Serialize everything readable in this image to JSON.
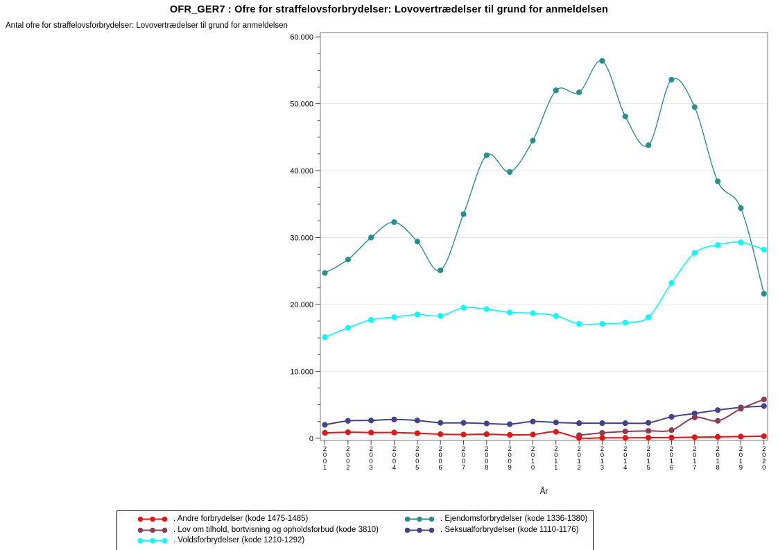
{
  "title": "OFR_GER7 : Ofre for straffelovsforbrydelser: Lovovertrædelser til grund for anmeldelsen",
  "y_axis_label": "Antal ofre for straffelovsforbrydelser: Lovovertrædelser til grund for anmeldelsen",
  "x_axis_title": "År",
  "colors": {
    "grid": "#e8e8e8",
    "frame": "#8c8c8c",
    "tick": "#404040",
    "legend_border": "#000000"
  },
  "chart_data": {
    "type": "line",
    "interpolation": "spline",
    "title": "OFR_GER7 : Ofre for straffelovsforbrydelser: Lovovertrædelser til grund for anmeldelsen",
    "xlabel": "År",
    "ylabel": "Antal ofre for straffelovsforbrydelser: Lovovertrædelser til grund for anmeldelsen",
    "x": [
      "2001",
      "2002",
      "2003",
      "2004",
      "2005",
      "2006",
      "2007",
      "2008",
      "2009",
      "2010",
      "2011",
      "2012",
      "2013",
      "2014",
      "2015",
      "2016",
      "2017",
      "2018",
      "2019",
      "2020"
    ],
    "ylim": [
      0,
      60000
    ],
    "ytick_values": [
      0,
      10000,
      20000,
      30000,
      40000,
      50000,
      60000
    ],
    "ytick_labels": [
      "0",
      "10.000",
      "20.000",
      "30.000",
      "40.000",
      "50.000",
      "60.000"
    ],
    "y_minor_tick_step": 2500,
    "grid": "horizontal-major",
    "legend_position": "bottom-left-box",
    "series": [
      {
        "key": "andre",
        "name": ". Andre forbrydelser (kode 1475-1485)",
        "color": "#ee1111",
        "values": [
          800,
          900,
          850,
          850,
          750,
          600,
          550,
          600,
          500,
          550,
          950,
          50,
          60,
          60,
          80,
          100,
          150,
          200,
          250,
          300
        ]
      },
      {
        "key": "ejendomsforbrydelser",
        "name": ". Ejendomsforbrydelser (kode 1336-1380)",
        "color": "#268f8f",
        "values": [
          24700,
          26700,
          30000,
          32300,
          29400,
          25100,
          33500,
          42300,
          39800,
          44500,
          52000,
          51700,
          56400,
          48100,
          43800,
          53600,
          49500,
          38400,
          34400,
          21600
        ]
      },
      {
        "key": "lov_om_tilhold",
        "name": ". Lov om tilhold, bortvisning og opholdsforbud (kode 3810)",
        "color": "#8e3c50",
        "values": [
          null,
          null,
          null,
          null,
          null,
          null,
          null,
          null,
          null,
          null,
          null,
          450,
          800,
          1000,
          1100,
          1200,
          3100,
          2600,
          4400,
          5800
        ]
      },
      {
        "key": "seksualforbrydelser",
        "name": ". Seksualforbrydelser (kode 1110-1176)",
        "color": "#41418f",
        "values": [
          2000,
          2600,
          2650,
          2800,
          2650,
          2300,
          2300,
          2200,
          2100,
          2500,
          2350,
          2250,
          2250,
          2250,
          2300,
          3200,
          3700,
          4200,
          4600,
          4800
        ]
      },
      {
        "key": "voldsforbrydelser",
        "name": ". Voldsforbrydelser (kode 1210-1292)",
        "color": "#00ffff",
        "values": [
          15100,
          16500,
          17700,
          18100,
          18500,
          18300,
          19500,
          19300,
          18800,
          18700,
          18300,
          17100,
          17100,
          17300,
          18100,
          23200,
          27700,
          28900,
          29300,
          28200
        ]
      }
    ]
  }
}
